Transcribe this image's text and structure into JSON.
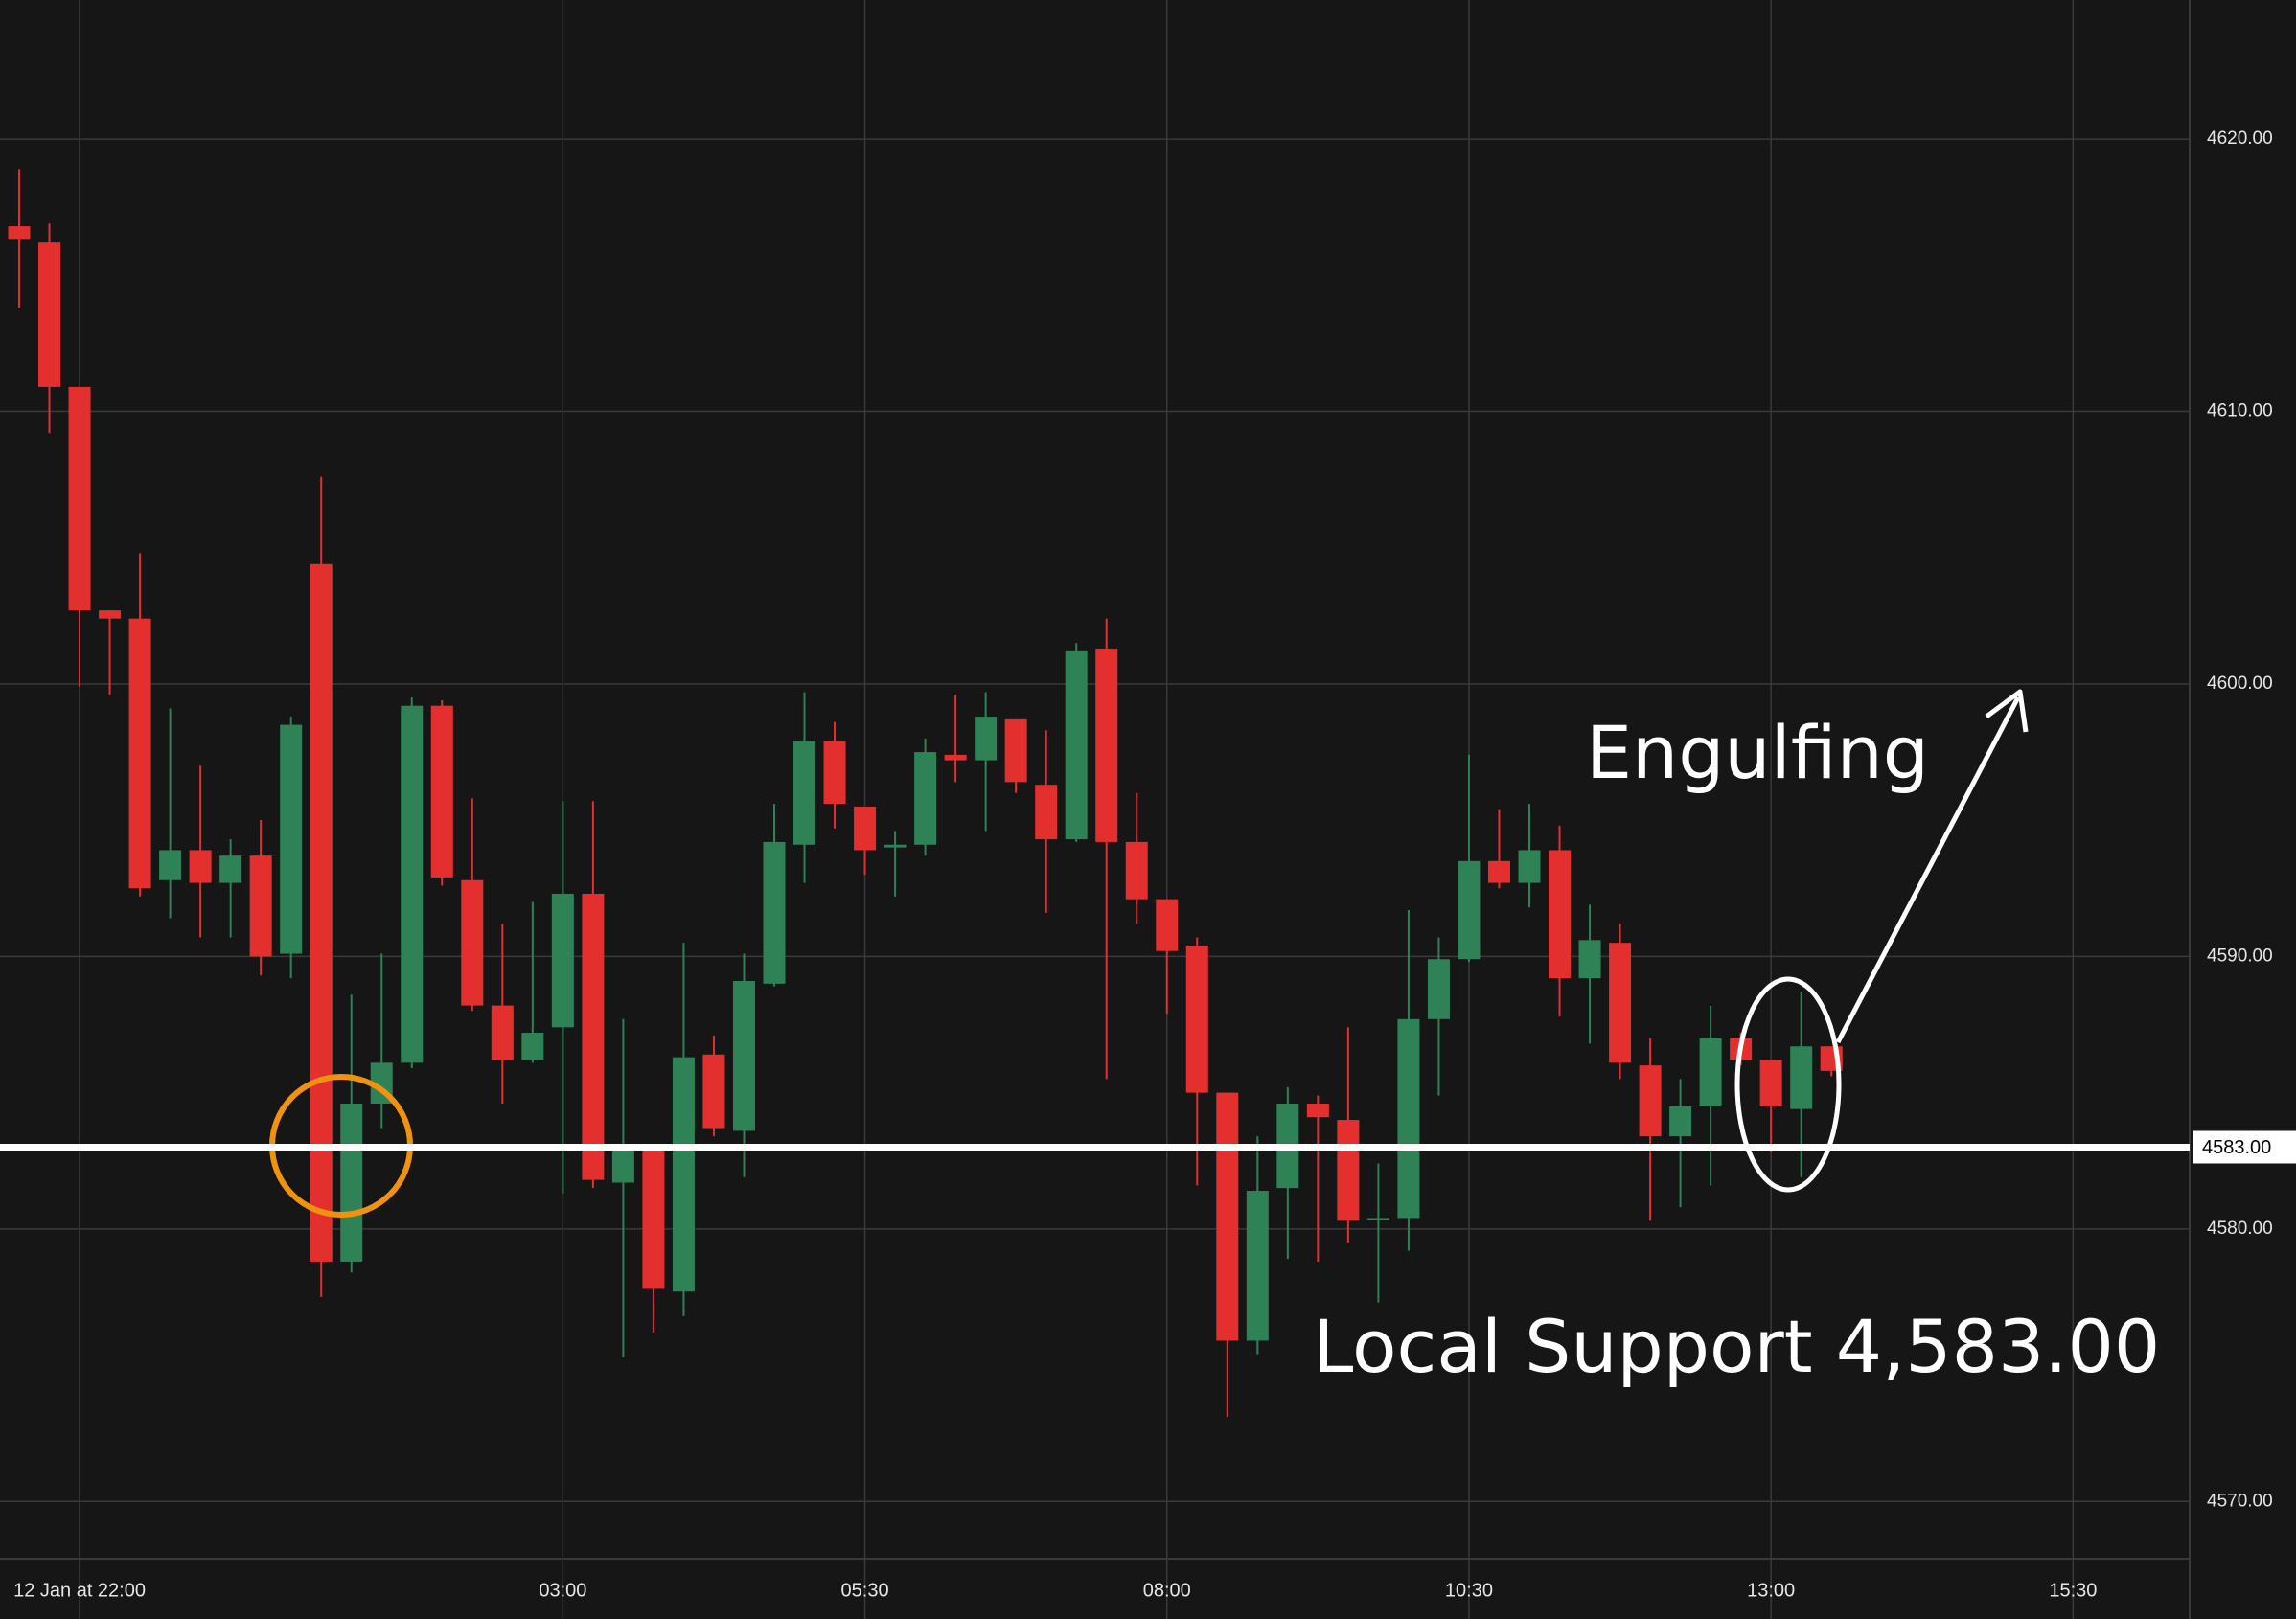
{
  "chart_data": {
    "type": "candlestick",
    "categories": [
      null,
      null,
      "12 Jan at 22:00",
      null,
      null,
      null,
      null,
      null,
      null,
      null,
      null,
      null,
      null,
      null,
      null,
      null,
      null,
      null,
      "03:00",
      null,
      null,
      null,
      null,
      null,
      null,
      null,
      null,
      null,
      "05:30",
      null,
      null,
      null,
      null,
      null,
      null,
      null,
      null,
      null,
      "08:00",
      null,
      null,
      null,
      null,
      null,
      null,
      null,
      null,
      null,
      "10:30",
      null,
      null,
      null,
      null,
      null,
      null,
      null,
      null,
      null,
      "13:00",
      null,
      null,
      null,
      null,
      null,
      null,
      null,
      null,
      null,
      "15:30"
    ],
    "open": [
      4616.8,
      4616.2,
      4610.9,
      4602.7,
      4602.4,
      4592.8,
      4593.9,
      4592.7,
      4593.7,
      4590.1,
      4604.4,
      4578.8,
      4584.6,
      4586.1,
      4599.2,
      4592.8,
      4588.2,
      4586.2,
      4587.4,
      4592.3,
      4581.7,
      4583.1,
      4577.7,
      4586.4,
      4583.6,
      4589.0,
      4594.1,
      4597.9,
      4595.5,
      4594.0,
      4594.1,
      4597.4,
      4597.2,
      4598.7,
      4596.3,
      4594.3,
      4601.3,
      4594.2,
      4592.1,
      4590.4,
      4585.0,
      4575.9,
      4581.5,
      4584.6,
      4584.0,
      4580.4,
      4580.4,
      4587.7,
      4589.9,
      4593.5,
      4592.7,
      4593.9,
      4589.2,
      4590.5,
      4586.0,
      4583.4,
      4584.5,
      4587.0,
      4586.2,
      4584.4,
      4586.7,
      null,
      null,
      null,
      null,
      null,
      null,
      null,
      null
    ],
    "high": [
      4618.9,
      4616.9,
      4610.9,
      4602.7,
      4604.8,
      4599.1,
      4597.0,
      4594.3,
      4595.0,
      4598.8,
      4607.6,
      4588.6,
      4590.1,
      4599.5,
      4599.4,
      4595.8,
      4591.2,
      4592.0,
      4595.7,
      4595.7,
      4587.7,
      4583.1,
      4590.5,
      4587.1,
      4590.1,
      4595.6,
      4599.7,
      4598.6,
      4595.5,
      4594.6,
      4598.0,
      4599.6,
      4599.7,
      4598.7,
      4598.3,
      4601.5,
      4602.4,
      4596.0,
      4592.1,
      4590.7,
      4585.0,
      4583.4,
      4585.2,
      4584.9,
      4587.4,
      4582.4,
      4591.7,
      4590.7,
      4597.4,
      4595.4,
      4595.6,
      4594.8,
      4591.9,
      4591.2,
      4587.0,
      4585.5,
      4588.2,
      4587.2,
      4586.2,
      4588.7,
      4586.7,
      null,
      null,
      null,
      null,
      null,
      null,
      null,
      null
    ],
    "low": [
      4613.8,
      4609.2,
      4599.9,
      4599.6,
      4592.2,
      4591.4,
      4590.7,
      4590.7,
      4589.3,
      4589.2,
      4577.5,
      4578.4,
      4583.7,
      4585.9,
      4592.6,
      4588.0,
      4584.6,
      4586.1,
      4581.3,
      4581.5,
      4575.3,
      4576.2,
      4576.8,
      4583.4,
      4581.9,
      4588.9,
      4592.7,
      4594.7,
      4593.0,
      4592.2,
      4593.7,
      4596.4,
      4594.6,
      4596.0,
      4591.6,
      4594.2,
      4585.5,
      4591.2,
      4587.9,
      4581.6,
      4573.1,
      4575.4,
      4578.9,
      4578.8,
      4579.5,
      4577.3,
      4579.2,
      4584.9,
      4589.8,
      4592.5,
      4591.8,
      4587.8,
      4586.8,
      4585.5,
      4580.3,
      4580.8,
      4581.6,
      4586.0,
      4582.8,
      4581.9,
      4585.6,
      null,
      null,
      null,
      null,
      null,
      null,
      null,
      null
    ],
    "close": [
      4616.3,
      4610.9,
      4602.7,
      4602.4,
      4592.5,
      4593.9,
      4592.7,
      4593.7,
      4590.0,
      4598.5,
      4578.8,
      4584.6,
      4586.1,
      4599.2,
      4592.9,
      4588.2,
      4586.2,
      4587.2,
      4592.3,
      4581.8,
      4583.1,
      4577.8,
      4586.3,
      4583.7,
      4589.1,
      4594.2,
      4597.9,
      4595.6,
      4593.9,
      4594.1,
      4597.5,
      4597.2,
      4598.8,
      4596.4,
      4594.3,
      4601.2,
      4594.2,
      4592.1,
      4590.2,
      4585.0,
      4575.9,
      4581.4,
      4584.6,
      4584.1,
      4580.3,
      4580.4,
      4587.7,
      4589.9,
      4593.5,
      4592.7,
      4593.9,
      4589.2,
      4590.6,
      4586.1,
      4583.4,
      4584.5,
      4587.0,
      4586.2,
      4584.5,
      4586.7,
      4585.8,
      null,
      null,
      null,
      null,
      null,
      null,
      null,
      null
    ],
    "up_color": "#2e8256",
    "down_color": "#e3302f",
    "ylim": [
      4567.9,
      4625.1
    ],
    "yticks": [
      {
        "value": 4570,
        "label": "4570.00"
      },
      {
        "value": 4580,
        "label": "4580.00"
      },
      {
        "value": 4590,
        "label": "4590.00"
      },
      {
        "value": 4600,
        "label": "4600.00"
      },
      {
        "value": 4610,
        "label": "4610.00"
      },
      {
        "value": 4620,
        "label": "4620.00"
      }
    ],
    "grid": true,
    "support": {
      "value": 4583,
      "label": "4583.00"
    },
    "annotations": [
      "Engulfing",
      "Local Support 4,583.00"
    ]
  }
}
